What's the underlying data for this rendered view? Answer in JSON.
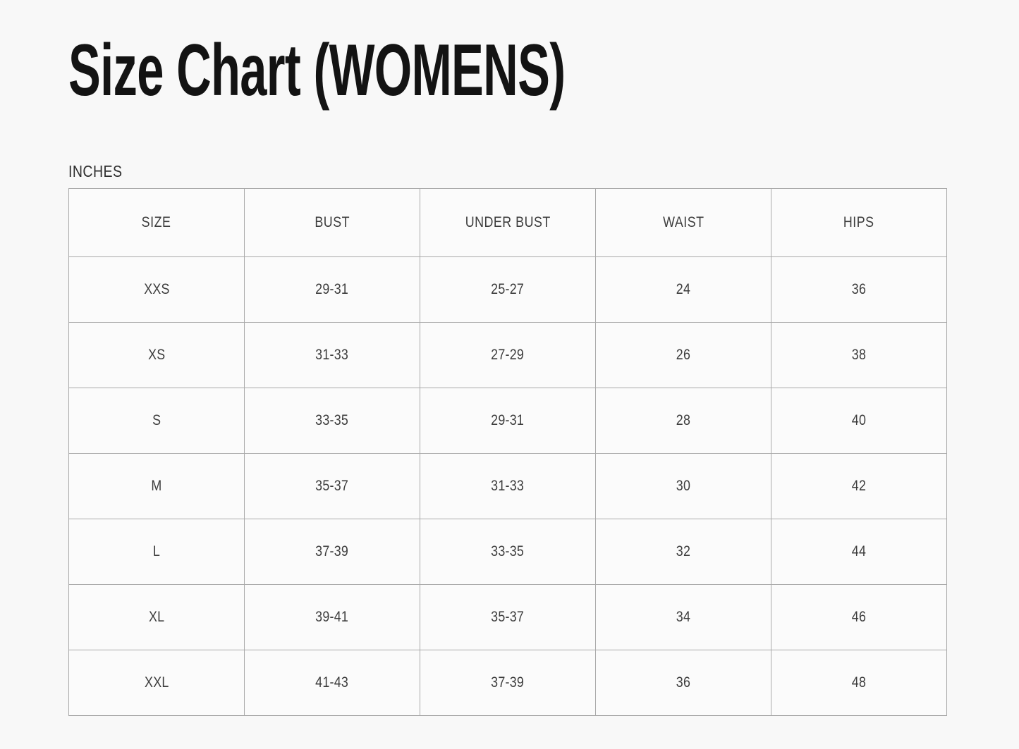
{
  "page": {
    "title": "Size Chart (WOMENS)",
    "units_label": "INCHES"
  },
  "size_table": {
    "columns": [
      "SIZE",
      "BUST",
      "UNDER BUST",
      "WAIST",
      "HIPS"
    ],
    "rows": [
      [
        "XXS",
        "29-31",
        "25-27",
        "24",
        "36"
      ],
      [
        "XS",
        "31-33",
        "27-29",
        "26",
        "38"
      ],
      [
        "S",
        "33-35",
        "29-31",
        "28",
        "40"
      ],
      [
        "M",
        "35-37",
        "31-33",
        "30",
        "42"
      ],
      [
        "L",
        "37-39",
        "33-35",
        "32",
        "44"
      ],
      [
        "XL",
        "39-41",
        "35-37",
        "34",
        "46"
      ],
      [
        "XXL",
        "41-43",
        "37-39",
        "36",
        "48"
      ]
    ]
  },
  "colors": {
    "page_background": "#f8f8f8",
    "cell_background": "#fbfbfb",
    "table_border": "#a9a9a9",
    "body_text": "#3c3c3c",
    "title_text": "#131313"
  }
}
